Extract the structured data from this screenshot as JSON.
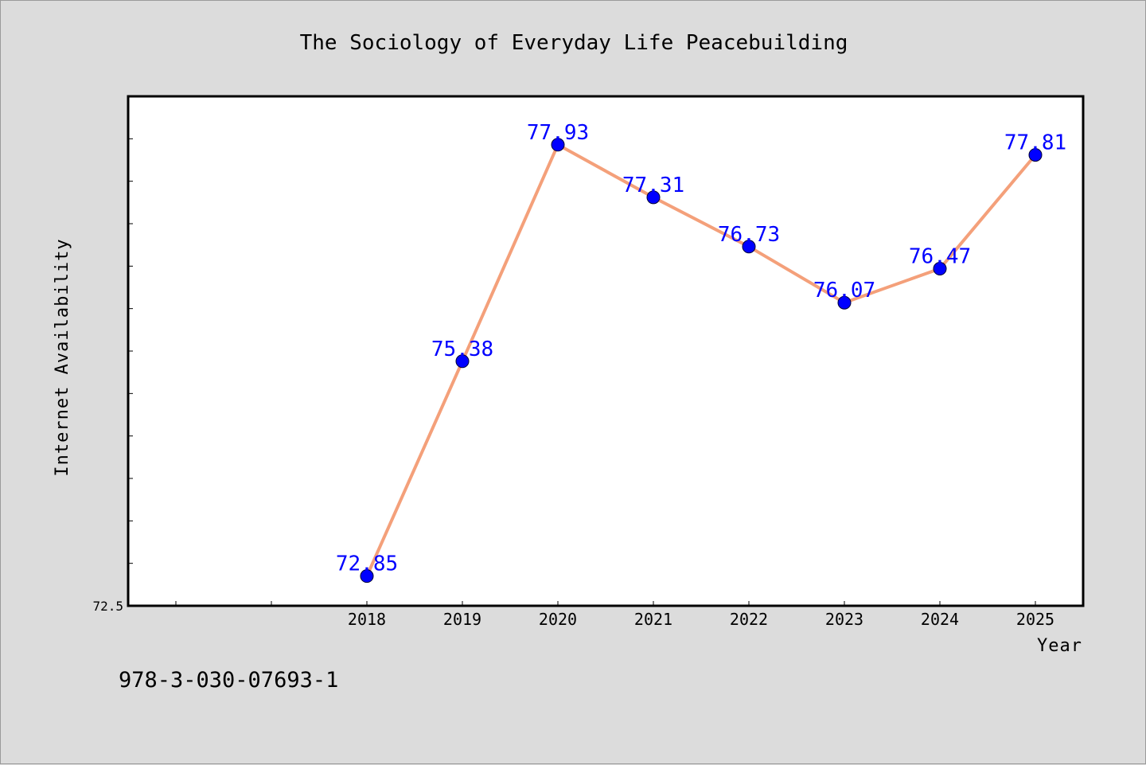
{
  "chart_data": {
    "type": "line",
    "title": "The Sociology of Everyday Life Peacebuilding",
    "xlabel": "Year",
    "ylabel": "Internet Availability",
    "x": [
      "2018",
      "2019",
      "2020",
      "2021",
      "2022",
      "2023",
      "2024",
      "2025"
    ],
    "series": [
      {
        "values": [
          72.85,
          75.38,
          77.93,
          77.31,
          76.73,
          76.07,
          76.47,
          77.81
        ],
        "labels": [
          "72.85",
          "75.38",
          "77.93",
          "77.31",
          "76.73",
          "76.07",
          "76.47",
          "77.81"
        ]
      }
    ],
    "ylim": [
      72.5,
      78.5
    ],
    "xlim": [
      2015.5,
      2025.5
    ],
    "ytick_labels": [
      "72.5"
    ],
    "line_color": "#f4a07a",
    "marker_color": "#0000ff",
    "label_color": "#0000ff",
    "grid": false
  },
  "footer": {
    "isbn": "978-3-030-07693-1"
  }
}
